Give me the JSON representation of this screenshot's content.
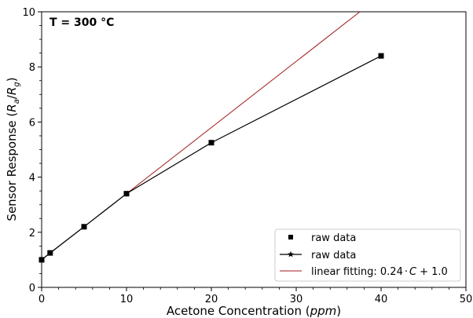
{
  "chart_data": {
    "type": "line",
    "annotation": "T = 300 °C",
    "xlabel_prefix": "Acetone Concentration (",
    "xlabel_var": "ppm",
    "xlabel_suffix": ")",
    "ylabel_prefix": "Sensor Response (",
    "ylabel_var_a": "R",
    "ylabel_sub_a": "a",
    "ylabel_slash": "/",
    "ylabel_var_g": "R",
    "ylabel_sub_g": "g",
    "ylabel_suffix": ")",
    "xlim": [
      0,
      50
    ],
    "ylim": [
      0,
      10
    ],
    "xticks": [
      0,
      10,
      20,
      30,
      40,
      50
    ],
    "yticks": [
      0,
      2,
      4,
      6,
      8,
      10
    ],
    "grid": false,
    "legend_position": "bottom-right",
    "series": [
      {
        "name": "raw data",
        "kind": "markers",
        "marker": "square",
        "color": "#000000",
        "x": [
          0,
          1,
          5,
          10,
          20,
          40
        ],
        "y": [
          1.0,
          1.25,
          2.2,
          3.4,
          5.25,
          8.4
        ]
      },
      {
        "name": "raw data",
        "kind": "line",
        "marker": "star",
        "color": "#000000",
        "x": [
          0,
          1,
          5,
          10,
          20,
          40
        ],
        "y": [
          1.0,
          1.25,
          2.2,
          3.4,
          5.25,
          8.4
        ]
      },
      {
        "name_prefix": "linear fitting: 0.24",
        "name_dot": "·",
        "name_var": "C",
        "name_suffix": "+ 1.0",
        "kind": "fit",
        "color": "#a11a1a",
        "slope": 0.24,
        "intercept": 1.0
      }
    ]
  }
}
